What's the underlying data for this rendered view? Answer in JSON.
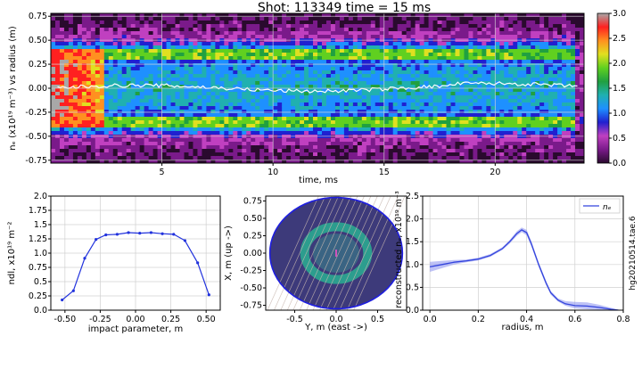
{
  "figure": {
    "title": "Shot: 113349    time = 15 ms",
    "side_label": "hg20210514.tae.6"
  },
  "chart_data": [
    {
      "id": "density-map",
      "type": "heatmap",
      "ylabel": "nₑ (x10¹⁹ m⁻³)  vs  radius (m)",
      "xlabel": "time, ms",
      "xlim": [
        0,
        24
      ],
      "ylim": [
        -0.78,
        0.78
      ],
      "xticks": [
        {
          "v": 5,
          "label": "5"
        },
        {
          "v": 10,
          "label": "10"
        },
        {
          "v": 15,
          "label": "15"
        },
        {
          "v": 20,
          "label": "20"
        }
      ],
      "yticks": [
        {
          "v": 0.75,
          "label": "0.75"
        },
        {
          "v": 0.5,
          "label": "0.50"
        },
        {
          "v": 0.25,
          "label": "0.25"
        },
        {
          "v": 0.0,
          "label": "0.00"
        },
        {
          "v": -0.25,
          "label": "-0.25"
        },
        {
          "v": -0.5,
          "label": "-0.50"
        },
        {
          "v": -0.75,
          "label": "-0.75"
        }
      ],
      "grid": true,
      "colorbar": {
        "min": 0.0,
        "max": 3.0,
        "ticks": [
          {
            "v": 3.0,
            "label": "3.0"
          },
          {
            "v": 2.5,
            "label": "2.5"
          },
          {
            "v": 2.0,
            "label": "2.0"
          },
          {
            "v": 1.5,
            "label": "1.5"
          },
          {
            "v": 1.0,
            "label": "1.0"
          },
          {
            "v": 0.5,
            "label": "0.5"
          },
          {
            "v": 0.0,
            "label": "0.0"
          }
        ],
        "colors": [
          "#2a0a2e",
          "#7a1a8a",
          "#c040c0",
          "#2020d0",
          "#1e90ff",
          "#20b0b0",
          "#20a040",
          "#60d020",
          "#e0e020",
          "#ff9020",
          "#ff2020",
          "#a8a8a8"
        ]
      },
      "peak_value": 3.0,
      "accent_line_color": "#ffffff"
    },
    {
      "id": "line-integrated",
      "type": "line",
      "ylabel": "ndl, x10¹⁹ m⁻²",
      "xlabel": "impact parameter, m",
      "xlim": [
        -0.6,
        0.6
      ],
      "ylim": [
        0,
        2.0
      ],
      "xticks": [
        {
          "v": -0.5,
          "label": "-0.50"
        },
        {
          "v": -0.25,
          "label": "-0.25"
        },
        {
          "v": 0,
          "label": "0.00"
        },
        {
          "v": 0.25,
          "label": "0.25"
        },
        {
          "v": 0.5,
          "label": "0.50"
        }
      ],
      "yticks": [
        {
          "v": 0,
          "label": "0.0"
        },
        {
          "v": 0.25,
          "label": "0.25"
        },
        {
          "v": 0.5,
          "label": "0.5"
        },
        {
          "v": 0.75,
          "label": "0.75"
        },
        {
          "v": 1.0,
          "label": "1.0"
        },
        {
          "v": 1.25,
          "label": "1.25"
        },
        {
          "v": 1.5,
          "label": "1.5"
        },
        {
          "v": 1.75,
          "label": "1.75"
        },
        {
          "v": 2.0,
          "label": "2.0"
        }
      ],
      "grid": true,
      "color": "#2233dd",
      "x": [
        -0.52,
        -0.44,
        -0.36,
        -0.28,
        -0.21,
        -0.13,
        -0.05,
        0.03,
        0.11,
        0.19,
        0.27,
        0.35,
        0.44,
        0.52
      ],
      "y": [
        0.18,
        0.34,
        0.91,
        1.24,
        1.32,
        1.33,
        1.36,
        1.35,
        1.36,
        1.34,
        1.33,
        1.22,
        0.83,
        0.27
      ]
    },
    {
      "id": "chord-geometry",
      "type": "scatter",
      "ylabel": "X, m  (up ->)",
      "xlabel": "Y, m  (east ->)",
      "xlim": [
        -0.85,
        0.85
      ],
      "ylim": [
        -0.82,
        0.82
      ],
      "xticks": [
        {
          "v": -0.5,
          "label": "-0.5"
        },
        {
          "v": 0,
          "label": "0.0"
        },
        {
          "v": 0.5,
          "label": "0.5"
        }
      ],
      "yticks": [
        {
          "v": 0.75,
          "label": "0.75"
        },
        {
          "v": 0.5,
          "label": "0.50"
        },
        {
          "v": 0.25,
          "label": "0.25"
        },
        {
          "v": 0,
          "label": "0.00"
        },
        {
          "v": -0.25,
          "label": "-0.25"
        },
        {
          "v": -0.5,
          "label": "-0.50"
        },
        {
          "v": -0.75,
          "label": "-0.75"
        }
      ],
      "vessel_radius": 0.8,
      "ring_radius": 0.38,
      "chord_offsets": [
        -0.52,
        -0.44,
        -0.36,
        -0.28,
        -0.21,
        -0.13,
        -0.05,
        0.03,
        0.11,
        0.19,
        0.27,
        0.35,
        0.44,
        0.52
      ],
      "colors": {
        "vessel": "#1f1fe0",
        "background": "#3d3a7a",
        "ring": "#2aa890",
        "chord": "#c8b8b0",
        "center": "#ff4fd0"
      }
    },
    {
      "id": "reconstructed-profile",
      "type": "line",
      "ylabel": "reconstructed nₑ, x10¹⁹ m⁻³",
      "xlabel": "radius, m",
      "xlim": [
        -0.03,
        0.8
      ],
      "ylim": [
        0,
        2.5
      ],
      "xticks": [
        {
          "v": 0,
          "label": "0.0"
        },
        {
          "v": 0.2,
          "label": "0.2"
        },
        {
          "v": 0.4,
          "label": "0.4"
        },
        {
          "v": 0.6,
          "label": "0.6"
        },
        {
          "v": 0.8,
          "label": "0.8"
        }
      ],
      "yticks": [
        {
          "v": 0,
          "label": "0.0"
        },
        {
          "v": 0.5,
          "label": "0.5"
        },
        {
          "v": 1.0,
          "label": "1.0"
        },
        {
          "v": 1.5,
          "label": "1.5"
        },
        {
          "v": 2.0,
          "label": "2.0"
        },
        {
          "v": 2.5,
          "label": "2.5"
        }
      ],
      "grid": true,
      "legend": {
        "label": "nₑ",
        "placement": "top-right"
      },
      "color": "#3344dd",
      "band_color": "#8890ee",
      "x": [
        0.0,
        0.05,
        0.1,
        0.15,
        0.2,
        0.25,
        0.3,
        0.33,
        0.36,
        0.38,
        0.4,
        0.42,
        0.45,
        0.48,
        0.5,
        0.53,
        0.56,
        0.6,
        0.65,
        0.7,
        0.75,
        0.78
      ],
      "y": [
        0.95,
        1.0,
        1.05,
        1.08,
        1.12,
        1.2,
        1.35,
        1.5,
        1.68,
        1.76,
        1.7,
        1.45,
        1.0,
        0.6,
        0.38,
        0.22,
        0.14,
        0.1,
        0.09,
        0.06,
        0.02,
        0.0
      ],
      "y_low": [
        0.84,
        0.92,
        1.0,
        1.05,
        1.09,
        1.17,
        1.32,
        1.46,
        1.63,
        1.71,
        1.64,
        1.39,
        0.95,
        0.55,
        0.34,
        0.19,
        0.1,
        0.04,
        0.02,
        0.01,
        0.0,
        0.0
      ],
      "y_high": [
        1.06,
        1.08,
        1.1,
        1.11,
        1.15,
        1.23,
        1.38,
        1.54,
        1.73,
        1.81,
        1.76,
        1.51,
        1.05,
        0.65,
        0.42,
        0.26,
        0.2,
        0.18,
        0.17,
        0.12,
        0.05,
        0.01
      ]
    }
  ]
}
